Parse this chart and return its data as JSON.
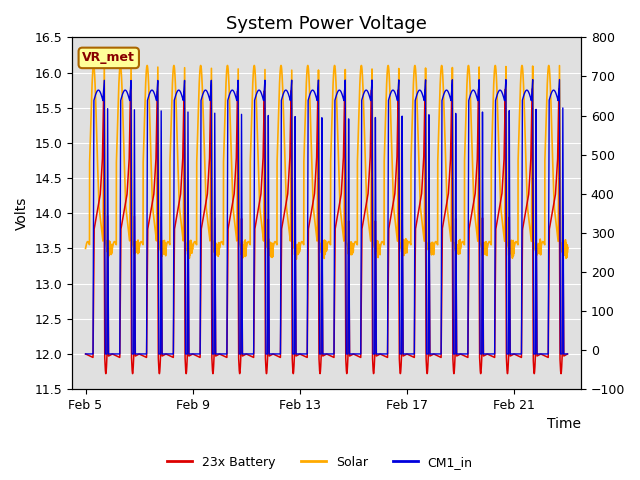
{
  "title": "System Power Voltage",
  "xlabel": "Time",
  "ylabel_left": "Volts",
  "ylabel_right": "",
  "ylim_left": [
    11.5,
    16.5
  ],
  "ylim_right": [
    -100,
    800
  ],
  "yticks_left": [
    11.5,
    12.0,
    12.5,
    13.0,
    13.5,
    14.0,
    14.5,
    15.0,
    15.5,
    16.0,
    16.5
  ],
  "yticks_right": [
    -100,
    0,
    100,
    200,
    300,
    400,
    500,
    600,
    700,
    800
  ],
  "xtick_labels": [
    "Feb 5",
    "Feb 9",
    "Feb 13",
    "Feb 17",
    "Feb 21"
  ],
  "xtick_positions": [
    0,
    4,
    8,
    12,
    16
  ],
  "xlim": [
    -0.5,
    18.5
  ],
  "colors": {
    "battery": "#dd0000",
    "solar": "#ffaa00",
    "cm1": "#0000dd"
  },
  "legend_labels": [
    "23x Battery",
    "Solar",
    "CM1_in"
  ],
  "annotation_text": "VR_met",
  "annotation_color": "#880000",
  "annotation_bg": "#ffff99",
  "annotation_border": "#aa6600",
  "background_color": "#e0e0e0",
  "grid_color": "#ffffff",
  "title_fontsize": 13,
  "axis_fontsize": 10,
  "tick_fontsize": 9,
  "n_cycles": 18
}
